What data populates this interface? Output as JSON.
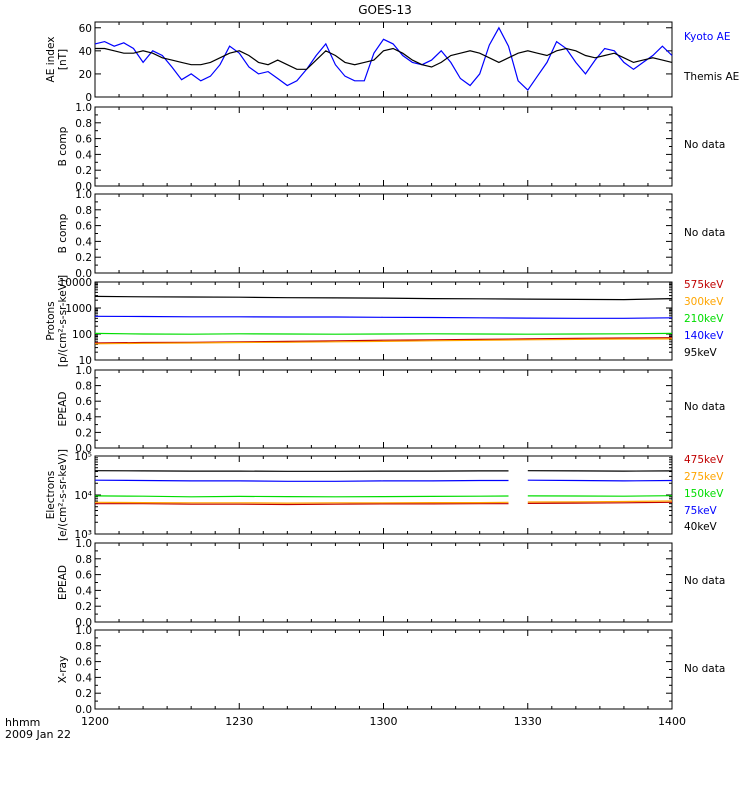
{
  "title": "GOES-13",
  "footer": {
    "time_unit": "hhmm",
    "date": "2009 Jan 22"
  },
  "colors": {
    "axis": "#000000",
    "blue": "#0000ff",
    "green": "#00dd00",
    "orange": "#ffa500",
    "red": "#c00000",
    "black": "#000000"
  },
  "x_axis": {
    "ticks": [
      "1200",
      "1230",
      "1300",
      "1330",
      "1400"
    ]
  },
  "chart_data": [
    {
      "type": "line",
      "panel": "ae-index",
      "ylabel": [
        "AE index",
        "[nT]"
      ],
      "ylim": [
        0,
        65
      ],
      "yticks": [
        0,
        20,
        40,
        60
      ],
      "ytick_labels": [
        "0",
        "20",
        "40",
        "60"
      ],
      "x": [
        0,
        2,
        4,
        6,
        8,
        10,
        12,
        14,
        16,
        18,
        20,
        22,
        24,
        26,
        28,
        30,
        32,
        34,
        36,
        38,
        40,
        42,
        44,
        46,
        48,
        50,
        52,
        54,
        56,
        58,
        60,
        62,
        64,
        66,
        68,
        70,
        72,
        74,
        76,
        78,
        80,
        82,
        84,
        86,
        88,
        90,
        92,
        94,
        96,
        98,
        100,
        102,
        104,
        106,
        108,
        110,
        112,
        114,
        116,
        118,
        120
      ],
      "series": [
        {
          "name": "Kyoto AE",
          "color": "blue",
          "values": [
            46,
            48,
            44,
            47,
            42,
            30,
            40,
            36,
            26,
            15,
            20,
            14,
            18,
            28,
            44,
            38,
            26,
            20,
            22,
            16,
            10,
            14,
            24,
            36,
            46,
            28,
            18,
            14,
            14,
            38,
            50,
            46,
            36,
            30,
            28,
            32,
            40,
            30,
            16,
            10,
            20,
            45,
            60,
            44,
            14,
            6,
            18,
            30,
            48,
            42,
            30,
            20,
            32,
            42,
            40,
            30,
            24,
            30,
            36,
            44,
            36
          ]
        },
        {
          "name": "Themis AE",
          "color": "black",
          "values": [
            42,
            42,
            40,
            38,
            38,
            40,
            38,
            34,
            32,
            30,
            28,
            28,
            30,
            34,
            38,
            40,
            36,
            30,
            28,
            32,
            28,
            24,
            24,
            32,
            40,
            36,
            30,
            28,
            30,
            32,
            40,
            42,
            38,
            32,
            28,
            26,
            30,
            36,
            38,
            40,
            38,
            34,
            30,
            34,
            38,
            40,
            38,
            36,
            40,
            42,
            40,
            36,
            34,
            36,
            38,
            34,
            30,
            32,
            34,
            32,
            30
          ]
        }
      ]
    },
    {
      "type": "line",
      "panel": "b-comp-1",
      "ylabel": [
        "B comp"
      ],
      "ylim": [
        0,
        1
      ],
      "yticks": [
        0,
        0.2,
        0.4,
        0.6,
        0.8,
        1.0
      ],
      "ytick_labels": [
        "0.0",
        "0.2",
        "0.4",
        "0.6",
        "0.8",
        "1.0"
      ],
      "status": "No data",
      "series": []
    },
    {
      "type": "line",
      "panel": "b-comp-2",
      "ylabel": [
        "B comp"
      ],
      "ylim": [
        0,
        1
      ],
      "yticks": [
        0,
        0.2,
        0.4,
        0.6,
        0.8,
        1.0
      ],
      "ytick_labels": [
        "0.0",
        "0.2",
        "0.4",
        "0.6",
        "0.8",
        "1.0"
      ],
      "status": "No data",
      "series": []
    },
    {
      "type": "line",
      "panel": "protons",
      "scale": "log",
      "ylabel": [
        "Protons",
        "[p/(cm²-s-sr-keV)]"
      ],
      "ylim": [
        10,
        10000
      ],
      "yticks": [
        10,
        100,
        1000,
        10000
      ],
      "ytick_labels": [
        "10",
        "100",
        "1000",
        "10000"
      ],
      "x": [
        0,
        10,
        20,
        30,
        40,
        50,
        60,
        70,
        80,
        90,
        100,
        110,
        120
      ],
      "series": [
        {
          "name": "575keV",
          "color": "red",
          "values": [
            45,
            47,
            48,
            50,
            52,
            55,
            58,
            60,
            62,
            65,
            68,
            70,
            72
          ]
        },
        {
          "name": "300keV",
          "color": "orange",
          "values": [
            42,
            44,
            45,
            47,
            48,
            50,
            52,
            55,
            57,
            60,
            62,
            64,
            65
          ]
        },
        {
          "name": "210keV",
          "color": "green",
          "values": [
            105,
            100,
            98,
            102,
            100,
            98,
            100,
            102,
            100,
            98,
            100,
            102,
            105
          ]
        },
        {
          "name": "140keV",
          "color": "blue",
          "values": [
            480,
            470,
            460,
            460,
            450,
            450,
            440,
            430,
            420,
            410,
            400,
            400,
            420
          ]
        },
        {
          "name": "95keV",
          "color": "black",
          "values": [
            2800,
            2700,
            2650,
            2600,
            2500,
            2450,
            2400,
            2300,
            2250,
            2200,
            2150,
            2100,
            2300
          ]
        }
      ]
    },
    {
      "type": "line",
      "panel": "epead-1",
      "ylabel": [
        "EPEAD"
      ],
      "ylim": [
        0,
        1
      ],
      "yticks": [
        0,
        0.2,
        0.4,
        0.6,
        0.8,
        1.0
      ],
      "ytick_labels": [
        "0.0",
        "0.2",
        "0.4",
        "0.6",
        "0.8",
        "1.0"
      ],
      "status": "No data",
      "series": []
    },
    {
      "type": "line",
      "panel": "electrons",
      "scale": "log",
      "ylabel": [
        "Electrons",
        "[e/(cm²-s-sr-keV)]"
      ],
      "ylim": [
        1000,
        100000
      ],
      "yticks": [
        1000,
        10000,
        100000
      ],
      "ytick_labels": [
        "10³",
        "10⁴",
        "10⁵"
      ],
      "x": [
        0,
        10,
        20,
        30,
        40,
        50,
        60,
        70,
        80,
        86,
        89,
        90,
        100,
        110,
        120
      ],
      "series": [
        {
          "name": "475keV",
          "color": "red",
          "values": [
            6000,
            6000,
            5800,
            5800,
            5700,
            5800,
            5900,
            5900,
            6000,
            6000,
            null,
            6100,
            6200,
            6300,
            6500
          ]
        },
        {
          "name": "275keV",
          "color": "orange",
          "values": [
            6500,
            6400,
            6300,
            6300,
            6200,
            6300,
            6300,
            6400,
            6400,
            6500,
            null,
            6600,
            6700,
            6800,
            7000
          ]
        },
        {
          "name": "150keV",
          "color": "green",
          "values": [
            9500,
            9300,
            9000,
            9200,
            9100,
            9000,
            9100,
            9200,
            9300,
            9400,
            null,
            9500,
            9400,
            9300,
            9600
          ]
        },
        {
          "name": "75keV",
          "color": "blue",
          "values": [
            24000,
            23500,
            23000,
            23000,
            22500,
            22500,
            23000,
            23000,
            23500,
            23500,
            null,
            24000,
            23500,
            23000,
            23500
          ]
        },
        {
          "name": "40keV",
          "color": "black",
          "values": [
            42000,
            41500,
            41000,
            41000,
            40500,
            40500,
            41000,
            41000,
            41500,
            41500,
            null,
            42000,
            41500,
            41000,
            41500
          ]
        }
      ]
    },
    {
      "type": "line",
      "panel": "epead-2",
      "ylabel": [
        "EPEAD"
      ],
      "ylim": [
        0,
        1
      ],
      "yticks": [
        0,
        0.2,
        0.4,
        0.6,
        0.8,
        1.0
      ],
      "ytick_labels": [
        "0.0",
        "0.2",
        "0.4",
        "0.6",
        "0.8",
        "1.0"
      ],
      "status": "No data",
      "series": []
    },
    {
      "type": "line",
      "panel": "x-ray",
      "ylabel": [
        "X-ray"
      ],
      "ylim": [
        0,
        1
      ],
      "yticks": [
        0,
        0.2,
        0.4,
        0.6,
        0.8,
        1.0
      ],
      "ytick_labels": [
        "0.0",
        "0.2",
        "0.4",
        "0.6",
        "0.8",
        "1.0"
      ],
      "status": "No data",
      "series": []
    }
  ]
}
